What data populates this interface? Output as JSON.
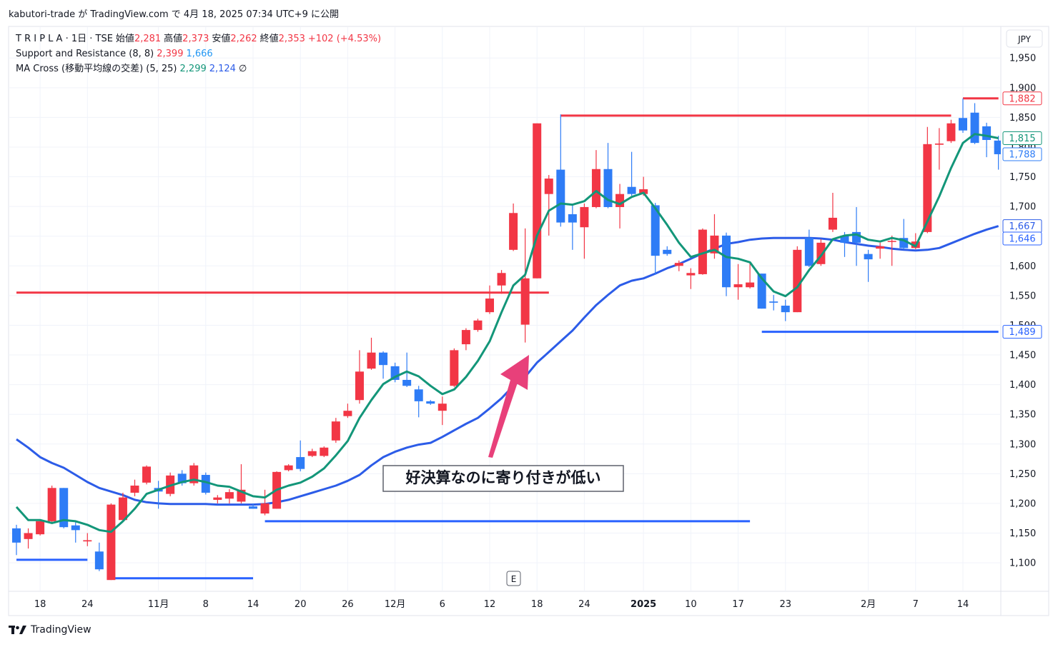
{
  "header": "kabutori-trade が TradingView.com で 4月 18, 2025 07:34 UTC+9 に公開",
  "footer": "TradingView",
  "chart_data": {
    "type": "candlestick",
    "currency": "JPY",
    "legend_header": {
      "symbol": "T R I P L A · 1日 · TSE",
      "ohlc": [
        {
          "label": "始値",
          "value": "2,281"
        },
        {
          "label": "高値",
          "value": "2,373"
        },
        {
          "label": "安値",
          "value": "2,262"
        },
        {
          "label": "終値",
          "value": "2,353"
        }
      ],
      "value_color": "#f23645",
      "change": "+102 (+4.53%)",
      "indicators": [
        {
          "name": "Support and Resistance (8, 8)",
          "values": [
            {
              "text": "2,399",
              "color": "#f23645"
            },
            {
              "text": "1,666",
              "color": "#2196f3"
            }
          ]
        },
        {
          "name": "MA Cross (移動平均線の交差) (5, 25)",
          "values": [
            {
              "text": "2,299",
              "color": "#139679"
            },
            {
              "text": "2,124",
              "color": "#2c5ce8"
            }
          ],
          "suffix": "∅"
        }
      ]
    },
    "annotation": "好決算なのに寄り付きが低い",
    "event_label": "E",
    "categories": [
      null,
      null,
      "18",
      null,
      null,
      null,
      "24",
      null,
      null,
      null,
      null,
      null,
      "11月",
      null,
      null,
      null,
      "8",
      null,
      null,
      null,
      "14",
      null,
      null,
      null,
      "20",
      null,
      null,
      null,
      "26",
      null,
      null,
      null,
      "12月",
      null,
      null,
      null,
      "6",
      null,
      null,
      null,
      "12",
      null,
      null,
      null,
      "18",
      null,
      null,
      null,
      "24",
      null,
      null,
      null,
      null,
      "2025",
      null,
      null,
      null,
      "10",
      null,
      null,
      null,
      "17",
      null,
      null,
      null,
      "23",
      null,
      null,
      null,
      null,
      null,
      null,
      "2月",
      null,
      null,
      null,
      "7",
      null,
      null,
      null,
      "14",
      null,
      null,
      null
    ],
    "open": [
      1158,
      1140,
      1148,
      1170,
      1226,
      1163,
      1136,
      1119,
      1071,
      1172,
      1218,
      1235,
      1226,
      1216,
      1250,
      1234,
      1248,
      1206,
      1208,
      1203,
      1195,
      1183,
      1191,
      1256,
      1278,
      1280,
      1280,
      1306,
      1347,
      1374,
      1427,
      1454,
      1431,
      1408,
      1392,
      1372,
      1356,
      1398,
      1468,
      1492,
      1522,
      1567,
      1627,
      1501,
      1579,
      1721,
      1762,
      1687,
      1665,
      1699,
      1763,
      1699,
      1733,
      1721,
      1702,
      1627,
      1600,
      1584,
      1586,
      1621,
      1651,
      1564,
      1564,
      1587,
      1540,
      1533,
      1522,
      1647,
      1603,
      1661,
      1651,
      1657,
      1620,
      1629,
      1641,
      1647,
      1630,
      1657,
      1804,
      1810,
      1849,
      1858,
      1835,
      1811
    ],
    "high": [
      1164,
      1158,
      1172,
      1230,
      1226,
      1170,
      1150,
      1134,
      1200,
      1218,
      1240,
      1264,
      1238,
      1252,
      1256,
      1268,
      1252,
      1214,
      1224,
      1266,
      1200,
      1223,
      1254,
      1266,
      1306,
      1292,
      1296,
      1344,
      1368,
      1458,
      1479,
      1456,
      1437,
      1454,
      1398,
      1374,
      1380,
      1461,
      1495,
      1511,
      1567,
      1593,
      1705,
      1663,
      1840,
      1753,
      1855,
      1702,
      1705,
      1795,
      1807,
      1738,
      1792,
      1750,
      1706,
      1633,
      1609,
      1596,
      1663,
      1687,
      1656,
      1603,
      1605,
      1587,
      1551,
      1543,
      1633,
      1661,
      1645,
      1723,
      1657,
      1699,
      1627,
      1639,
      1651,
      1679,
      1655,
      1834,
      1832,
      1846,
      1882,
      1874,
      1841,
      1819
    ],
    "low": [
      1113,
      1124,
      1146,
      1167,
      1158,
      1134,
      1128,
      1086,
      1071,
      1170,
      1212,
      1232,
      1191,
      1212,
      1230,
      1230,
      1215,
      1200,
      1200,
      1200,
      1191,
      1180,
      1191,
      1254,
      1254,
      1278,
      1278,
      1302,
      1344,
      1368,
      1425,
      1410,
      1404,
      1396,
      1345,
      1366,
      1332,
      1396,
      1458,
      1489,
      1519,
      1553,
      1625,
      1471,
      1579,
      1651,
      1666,
      1627,
      1612,
      1697,
      1697,
      1663,
      1718,
      1718,
      1585,
      1617,
      1591,
      1561,
      1585,
      1612,
      1549,
      1543,
      1562,
      1528,
      1525,
      1507,
      1522,
      1598,
      1600,
      1657,
      1615,
      1600,
      1573,
      1612,
      1600,
      1628,
      1628,
      1655,
      1762,
      1807,
      1824,
      1805,
      1783,
      1762
    ],
    "close": [
      1134,
      1150,
      1170,
      1226,
      1160,
      1155,
      1138,
      1089,
      1198,
      1210,
      1230,
      1262,
      1220,
      1247,
      1234,
      1264,
      1218,
      1210,
      1219,
      1223,
      1191,
      1200,
      1253,
      1264,
      1258,
      1288,
      1294,
      1338,
      1356,
      1422,
      1454,
      1433,
      1408,
      1398,
      1372,
      1368,
      1368,
      1458,
      1492,
      1508,
      1545,
      1588,
      1689,
      1579,
      1840,
      1747,
      1673,
      1673,
      1699,
      1763,
      1699,
      1721,
      1721,
      1729,
      1617,
      1620,
      1605,
      1588,
      1661,
      1651,
      1564,
      1569,
      1572,
      1528,
      1538,
      1522,
      1627,
      1600,
      1639,
      1681,
      1639,
      1639,
      1611,
      1633,
      1642,
      1630,
      1641,
      1805,
      1806,
      1840,
      1828,
      1807,
      1812,
      1788
    ],
    "up_color": "#f23645",
    "down_color": "#2e7cf6",
    "moving_averages": [
      {
        "color": "#139679",
        "values": [
          1194,
          1172,
          1172,
          1167,
          1172,
          1170,
          1164,
          1155,
          1152,
          1170,
          1191,
          1216,
          1223,
          1230,
          1236,
          1240,
          1236,
          1230,
          1228,
          1220,
          1212,
          1210,
          1223,
          1230,
          1235,
          1245,
          1259,
          1281,
          1305,
          1344,
          1374,
          1401,
          1413,
          1422,
          1414,
          1398,
          1384,
          1392,
          1413,
          1440,
          1473,
          1522,
          1567,
          1585,
          1651,
          1693,
          1705,
          1703,
          1709,
          1726,
          1711,
          1704,
          1716,
          1723,
          1697,
          1669,
          1639,
          1615,
          1621,
          1627,
          1615,
          1612,
          1606,
          1579,
          1557,
          1549,
          1564,
          1593,
          1617,
          1645,
          1651,
          1653,
          1644,
          1641,
          1647,
          1643,
          1633,
          1675,
          1717,
          1765,
          1807,
          1822,
          1819,
          1815
        ]
      },
      {
        "color": "#2c5ce8",
        "values": [
          1308,
          1294,
          1278,
          1268,
          1260,
          1248,
          1236,
          1226,
          1220,
          1214,
          1206,
          1202,
          1200,
          1199,
          1199,
          1199,
          1199,
          1198,
          1198,
          1198,
          1198,
          1199,
          1202,
          1206,
          1212,
          1218,
          1224,
          1230,
          1238,
          1248,
          1264,
          1278,
          1287,
          1294,
          1299,
          1302,
          1312,
          1323,
          1334,
          1344,
          1360,
          1377,
          1398,
          1413,
          1437,
          1455,
          1473,
          1491,
          1513,
          1534,
          1551,
          1567,
          1575,
          1579,
          1587,
          1596,
          1603,
          1612,
          1621,
          1629,
          1637,
          1640,
          1644,
          1646,
          1647,
          1647,
          1647,
          1647,
          1646,
          1644,
          1640,
          1637,
          1634,
          1632,
          1629,
          1627,
          1626,
          1627,
          1630,
          1638,
          1646,
          1654,
          1661,
          1667
        ]
      }
    ],
    "support_resistance": [
      {
        "color": "#f23645",
        "values": [
          1555,
          1555,
          1555,
          1555,
          1555,
          1555,
          1555,
          1555,
          1555,
          1555,
          1555,
          1555,
          1555,
          1555,
          1555,
          1555,
          1555,
          1555,
          1555,
          1555,
          1555,
          1555,
          1555,
          1555,
          1555,
          1555,
          1555,
          1555,
          1555,
          1555,
          1555,
          1555,
          1555,
          1555,
          1555,
          1555,
          1555,
          1555,
          1555,
          1555,
          1555,
          1555,
          1555,
          1555,
          1555,
          1555,
          1853,
          1853,
          1853,
          1853,
          1853,
          1853,
          1853,
          1853,
          1853,
          1853,
          1853,
          1853,
          1853,
          1853,
          1853,
          1853,
          1853,
          1853,
          1853,
          1853,
          1853,
          1853,
          1853,
          1853,
          1853,
          1853,
          1853,
          1853,
          1853,
          1853,
          1853,
          1853,
          1853,
          1853,
          1882,
          1882,
          1882,
          1882
        ]
      },
      {
        "color": "#2962ff",
        "values": [
          1105,
          1105,
          1105,
          1105,
          1105,
          1105,
          1105,
          null,
          1074,
          1074,
          1074,
          1074,
          1074,
          1074,
          1074,
          1074,
          1074,
          1074,
          1074,
          1074,
          1074,
          1170,
          1170,
          1170,
          1170,
          1170,
          1170,
          1170,
          1170,
          1170,
          1170,
          1170,
          1170,
          1170,
          1170,
          1170,
          1170,
          1170,
          1170,
          1170,
          1170,
          1170,
          1170,
          1170,
          1170,
          1170,
          1170,
          1170,
          1170,
          1170,
          1170,
          1170,
          1170,
          1170,
          1170,
          1170,
          1170,
          1170,
          1170,
          1170,
          1170,
          1170,
          1170,
          1489,
          1489,
          1489,
          1489,
          1489,
          1489,
          1489,
          1489,
          1489,
          1489,
          1489,
          1489,
          1489,
          1489,
          1489,
          1489,
          1489,
          1489,
          1489,
          1489,
          1489
        ]
      }
    ],
    "ylim": [
      1052,
      2002
    ],
    "yticks": [
      {
        "value": 1100,
        "label": "1,100"
      },
      {
        "value": 1150,
        "label": "1,150"
      },
      {
        "value": 1200,
        "label": "1,200"
      },
      {
        "value": 1250,
        "label": "1,250"
      },
      {
        "value": 1300,
        "label": "1,300"
      },
      {
        "value": 1350,
        "label": "1,350"
      },
      {
        "value": 1400,
        "label": "1,400"
      },
      {
        "value": 1450,
        "label": "1,450"
      },
      {
        "value": 1500,
        "label": "1,500"
      },
      {
        "value": 1550,
        "label": "1,550"
      },
      {
        "value": 1600,
        "label": "1,600"
      },
      {
        "value": 1650,
        "label": "1,650"
      },
      {
        "value": 1700,
        "label": "1,700"
      },
      {
        "value": 1750,
        "label": "1,750"
      },
      {
        "value": 1800,
        "label": "1,800"
      },
      {
        "value": 1850,
        "label": "1,850"
      },
      {
        "value": 1900,
        "label": "1,900"
      },
      {
        "value": 1950,
        "label": "1,950"
      }
    ],
    "grid": true,
    "price_tags": [
      {
        "value": 1882,
        "label": "1,882",
        "color": "#f23645"
      },
      {
        "value": 1815,
        "label": "1,815",
        "color": "#139679"
      },
      {
        "value": 1788,
        "label": "1,788",
        "color": "#2e7cf6"
      },
      {
        "value": 1667,
        "label": "1,667",
        "color": "#2c5ce8"
      },
      {
        "value": 1646,
        "label": "1,646",
        "color": "#2962ff"
      },
      {
        "value": 1489,
        "label": "1,489",
        "color": "#2962ff"
      }
    ]
  }
}
